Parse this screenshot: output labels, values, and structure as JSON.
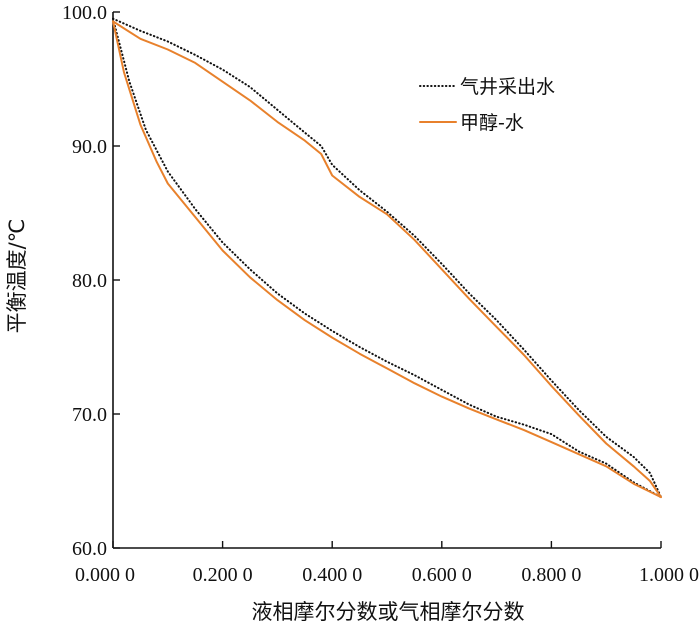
{
  "chart_data": {
    "type": "line",
    "xlabel": "液相摩尔分数或气相摩尔分数",
    "ylabel": "平衡温度/℃",
    "xlim": [
      0,
      1
    ],
    "ylim": [
      60,
      100
    ],
    "x_ticks": [
      {
        "value": 0.0,
        "label": "0.000 0"
      },
      {
        "value": 0.2,
        "label": "0.200 0"
      },
      {
        "value": 0.4,
        "label": "0.400 0"
      },
      {
        "value": 0.6,
        "label": "0.600 0"
      },
      {
        "value": 0.8,
        "label": "0.800 0"
      },
      {
        "value": 1.0,
        "label": "1.000 0"
      }
    ],
    "y_ticks": [
      {
        "value": 60,
        "label": "60.0"
      },
      {
        "value": 70,
        "label": "70.0"
      },
      {
        "value": 80,
        "label": "80.0"
      },
      {
        "value": 90,
        "label": "90.0"
      },
      {
        "value": 100,
        "label": "100.0"
      }
    ],
    "grid": false,
    "legend_position": "top-right",
    "series": [
      {
        "name": "气井采出水",
        "color": "#111111",
        "style": "dotted",
        "curves": [
          [
            [
              0.0,
              99.5
            ],
            [
              0.05,
              98.6
            ],
            [
              0.1,
              97.8
            ],
            [
              0.15,
              96.8
            ],
            [
              0.2,
              95.7
            ],
            [
              0.25,
              94.4
            ],
            [
              0.3,
              92.7
            ],
            [
              0.35,
              91.0
            ],
            [
              0.38,
              90.0
            ],
            [
              0.4,
              88.6
            ],
            [
              0.45,
              86.7
            ],
            [
              0.5,
              85.1
            ],
            [
              0.55,
              83.3
            ],
            [
              0.6,
              81.2
            ],
            [
              0.65,
              79.0
            ],
            [
              0.7,
              77.0
            ],
            [
              0.75,
              74.8
            ],
            [
              0.8,
              72.5
            ],
            [
              0.85,
              70.3
            ],
            [
              0.9,
              68.3
            ],
            [
              0.95,
              66.8
            ],
            [
              0.98,
              65.6
            ],
            [
              1.0,
              63.8
            ]
          ],
          [
            [
              0.0,
              99.5
            ],
            [
              0.03,
              94.8
            ],
            [
              0.06,
              91.2
            ],
            [
              0.1,
              88.1
            ],
            [
              0.15,
              85.3
            ],
            [
              0.2,
              82.8
            ],
            [
              0.25,
              80.8
            ],
            [
              0.3,
              79.0
            ],
            [
              0.35,
              77.5
            ],
            [
              0.4,
              76.2
            ],
            [
              0.45,
              75.0
            ],
            [
              0.5,
              73.9
            ],
            [
              0.55,
              72.9
            ],
            [
              0.6,
              71.8
            ],
            [
              0.65,
              70.7
            ],
            [
              0.7,
              69.8
            ],
            [
              0.75,
              69.2
            ],
            [
              0.8,
              68.5
            ],
            [
              0.85,
              67.2
            ],
            [
              0.9,
              66.3
            ],
            [
              0.95,
              64.9
            ],
            [
              1.0,
              63.8
            ]
          ]
        ]
      },
      {
        "name": "甲醇-水",
        "color": "#E8812C",
        "style": "solid",
        "curves": [
          [
            [
              0.0,
              99.3
            ],
            [
              0.05,
              98.0
            ],
            [
              0.1,
              97.2
            ],
            [
              0.15,
              96.2
            ],
            [
              0.2,
              94.8
            ],
            [
              0.25,
              93.4
            ],
            [
              0.3,
              91.8
            ],
            [
              0.35,
              90.4
            ],
            [
              0.38,
              89.4
            ],
            [
              0.4,
              87.8
            ],
            [
              0.45,
              86.2
            ],
            [
              0.5,
              84.9
            ],
            [
              0.55,
              83.0
            ],
            [
              0.6,
              80.8
            ],
            [
              0.65,
              78.6
            ],
            [
              0.7,
              76.5
            ],
            [
              0.75,
              74.4
            ],
            [
              0.8,
              72.1
            ],
            [
              0.85,
              69.9
            ],
            [
              0.9,
              67.8
            ],
            [
              0.95,
              66.1
            ],
            [
              0.98,
              65.0
            ],
            [
              1.0,
              63.8
            ]
          ],
          [
            [
              0.0,
              99.3
            ],
            [
              0.02,
              95.5
            ],
            [
              0.05,
              91.6
            ],
            [
              0.08,
              88.8
            ],
            [
              0.1,
              87.2
            ],
            [
              0.15,
              84.7
            ],
            [
              0.2,
              82.2
            ],
            [
              0.25,
              80.2
            ],
            [
              0.3,
              78.5
            ],
            [
              0.35,
              77.0
            ],
            [
              0.4,
              75.7
            ],
            [
              0.45,
              74.5
            ],
            [
              0.5,
              73.4
            ],
            [
              0.55,
              72.3
            ],
            [
              0.6,
              71.3
            ],
            [
              0.65,
              70.4
            ],
            [
              0.7,
              69.6
            ],
            [
              0.75,
              68.8
            ],
            [
              0.8,
              67.9
            ],
            [
              0.85,
              67.0
            ],
            [
              0.9,
              66.1
            ],
            [
              0.95,
              64.8
            ],
            [
              1.0,
              63.8
            ]
          ]
        ]
      }
    ]
  }
}
